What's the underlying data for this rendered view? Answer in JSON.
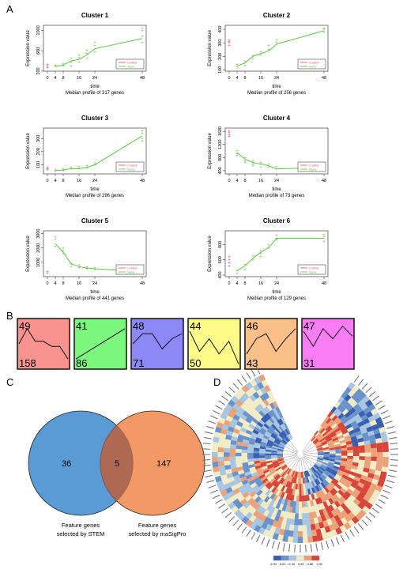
{
  "panel_labels": {
    "A": "A",
    "B": "B",
    "C": "C",
    "D": "D"
  },
  "legend": {
    "control": "Control",
    "injury": "Injury"
  },
  "colors": {
    "control": "#e8407a",
    "injury": "#5cc63a",
    "line": "#62c545"
  },
  "chart_data": [
    {
      "type": "line",
      "title": "Cluster 1",
      "xlabel": "time",
      "ylabel": "Expression value",
      "subtitle": "Median profile of 317 genes",
      "x": [
        0,
        4,
        8,
        12,
        16,
        20,
        24,
        48
      ],
      "xticks": [
        0,
        4,
        8,
        16,
        24,
        48
      ],
      "ylim": [
        200,
        1100
      ],
      "yticks": [
        200,
        600,
        1000
      ],
      "median": [
        290,
        290,
        320,
        400,
        430,
        520,
        640,
        840
      ],
      "injury_points": [
        [
          4,
          290
        ],
        [
          4,
          320
        ],
        [
          8,
          300
        ],
        [
          8,
          350
        ],
        [
          12,
          380
        ],
        [
          12,
          450
        ],
        [
          12,
          300
        ],
        [
          16,
          460
        ],
        [
          16,
          380
        ],
        [
          16,
          520
        ],
        [
          20,
          540
        ],
        [
          20,
          600
        ],
        [
          20,
          450
        ],
        [
          24,
          700
        ],
        [
          24,
          580
        ],
        [
          24,
          760
        ],
        [
          48,
          1000
        ],
        [
          48,
          760
        ],
        [
          48,
          880
        ],
        [
          48,
          1040
        ]
      ],
      "control_points": [
        [
          0,
          300
        ],
        [
          0,
          330
        ],
        [
          0,
          270
        ]
      ]
    },
    {
      "type": "line",
      "title": "Cluster 2",
      "xlabel": "time",
      "ylabel": "Expression value",
      "subtitle": "Median profile of 256 genes",
      "x": [
        0,
        4,
        8,
        12,
        16,
        20,
        24,
        48
      ],
      "xticks": [
        0,
        4,
        8,
        16,
        24,
        48
      ],
      "ylim": [
        90,
        430
      ],
      "yticks": [
        100,
        200,
        300,
        400
      ],
      "median": [
        130,
        130,
        150,
        200,
        220,
        240,
        290,
        390
      ],
      "injury_points": [
        [
          4,
          120
        ],
        [
          4,
          140
        ],
        [
          8,
          130
        ],
        [
          8,
          160
        ],
        [
          12,
          200
        ],
        [
          12,
          180
        ],
        [
          16,
          230
        ],
        [
          16,
          210
        ],
        [
          20,
          250
        ],
        [
          20,
          280
        ],
        [
          24,
          300
        ],
        [
          24,
          320
        ],
        [
          48,
          380
        ],
        [
          48,
          400
        ],
        [
          48,
          410
        ]
      ],
      "control_points": [
        [
          0,
          300
        ],
        [
          0,
          320
        ],
        [
          0,
          280
        ],
        [
          0,
          310
        ]
      ]
    },
    {
      "type": "line",
      "title": "Cluster 3",
      "xlabel": "time",
      "ylabel": "Expression value",
      "subtitle": "Median profile of 296 genes",
      "x": [
        0,
        4,
        8,
        12,
        16,
        20,
        24,
        48
      ],
      "xticks": [
        0,
        4,
        8,
        16,
        24,
        48
      ],
      "ylim": [
        30,
        380
      ],
      "yticks": [
        100,
        200,
        300
      ],
      "median": [
        60,
        55,
        60,
        70,
        70,
        80,
        100,
        320
      ],
      "injury_points": [
        [
          4,
          50
        ],
        [
          4,
          60
        ],
        [
          8,
          55
        ],
        [
          8,
          65
        ],
        [
          12,
          70
        ],
        [
          12,
          80
        ],
        [
          16,
          70
        ],
        [
          16,
          85
        ],
        [
          20,
          90
        ],
        [
          20,
          75
        ],
        [
          24,
          110
        ],
        [
          24,
          95
        ],
        [
          48,
          300
        ],
        [
          48,
          340
        ],
        [
          48,
          280
        ],
        [
          48,
          360
        ]
      ],
      "control_points": [
        [
          0,
          70
        ],
        [
          0,
          80
        ],
        [
          0,
          60
        ]
      ]
    },
    {
      "type": "line",
      "title": "Cluster 4",
      "xlabel": "time",
      "ylabel": "Expression value",
      "subtitle": "Median profile of 73 genes",
      "x": [
        0,
        4,
        8,
        12,
        16,
        20,
        24,
        48
      ],
      "xticks": [
        0,
        4,
        8,
        16,
        24,
        48
      ],
      "ylim": [
        300,
        1700
      ],
      "yticks": [
        400,
        800,
        1200,
        1600
      ],
      "median": [
        900,
        950,
        750,
        650,
        600,
        550,
        450,
        500
      ],
      "injury_points": [
        [
          4,
          1000
        ],
        [
          4,
          900
        ],
        [
          4,
          850
        ],
        [
          8,
          800
        ],
        [
          8,
          700
        ],
        [
          8,
          650
        ],
        [
          12,
          700
        ],
        [
          12,
          600
        ],
        [
          12,
          550
        ],
        [
          16,
          650
        ],
        [
          16,
          500
        ],
        [
          16,
          600
        ],
        [
          20,
          600
        ],
        [
          20,
          500
        ],
        [
          24,
          450
        ],
        [
          24,
          520
        ],
        [
          48,
          550
        ],
        [
          48,
          450
        ]
      ],
      "control_points": [
        [
          0,
          1600
        ],
        [
          0,
          1500
        ],
        [
          0,
          1450
        ],
        [
          0,
          1550
        ]
      ]
    },
    {
      "type": "line",
      "title": "Cluster 5",
      "xlabel": "time",
      "ylabel": "Expression value",
      "subtitle": "Median profile of 441 genes",
      "x": [
        0,
        4,
        8,
        12,
        16,
        20,
        24,
        48
      ],
      "xticks": [
        0,
        4,
        8,
        16,
        24,
        48
      ],
      "ylim": [
        0,
        3200
      ],
      "yticks": [
        1000,
        2000,
        3000
      ],
      "median": [
        2200,
        2300,
        1700,
        900,
        700,
        600,
        550,
        350
      ],
      "injury_points": [
        [
          4,
          2600
        ],
        [
          4,
          2800
        ],
        [
          4,
          2100
        ],
        [
          8,
          1800
        ],
        [
          8,
          1600
        ],
        [
          8,
          2000
        ],
        [
          12,
          900
        ],
        [
          12,
          700
        ],
        [
          16,
          800
        ],
        [
          16,
          600
        ],
        [
          20,
          550
        ],
        [
          20,
          650
        ],
        [
          24,
          500
        ],
        [
          24,
          600
        ],
        [
          48,
          400
        ],
        [
          48,
          300
        ]
      ],
      "control_points": [
        [
          0,
          350
        ],
        [
          0,
          250
        ]
      ]
    },
    {
      "type": "line",
      "title": "Cluster 6",
      "xlabel": "time",
      "ylabel": "Expression value",
      "subtitle": "Median profile of 129 genes",
      "x": [
        0,
        4,
        8,
        12,
        16,
        20,
        24,
        48
      ],
      "xticks": [
        0,
        4,
        8,
        16,
        24,
        48
      ],
      "ylim": [
        380,
        980
      ],
      "yticks": [
        400,
        600,
        800
      ],
      "median": [
        420,
        460,
        520,
        620,
        700,
        760,
        880,
        880
      ],
      "injury_points": [
        [
          4,
          420
        ],
        [
          4,
          460
        ],
        [
          8,
          480
        ],
        [
          8,
          540
        ],
        [
          12,
          600
        ],
        [
          12,
          650
        ],
        [
          16,
          680
        ],
        [
          16,
          720
        ],
        [
          16,
          640
        ],
        [
          20,
          760
        ],
        [
          20,
          800
        ],
        [
          24,
          880
        ],
        [
          24,
          920
        ],
        [
          24,
          860
        ],
        [
          48,
          840
        ],
        [
          48,
          900
        ],
        [
          48,
          930
        ]
      ],
      "control_points": [
        [
          0,
          600
        ],
        [
          0,
          560
        ],
        [
          0,
          520
        ],
        [
          0,
          640
        ]
      ]
    }
  ],
  "profiles": [
    {
      "id": "49",
      "count": "158",
      "color": "#f9938f",
      "shape": [
        0.5,
        0.8,
        0.55,
        0.55,
        0.45,
        0.45,
        0.2
      ]
    },
    {
      "id": "41",
      "count": "86",
      "color": "#7df87e",
      "shape": [
        0.2,
        0.35,
        0.5,
        0.65,
        0.8
      ]
    },
    {
      "id": "48",
      "count": "71",
      "color": "#8c88f8",
      "shape": [
        0.5,
        0.7,
        0.7,
        0.4,
        0.6,
        0.7
      ]
    },
    {
      "id": "44",
      "count": "50",
      "color": "#fdfc8a",
      "shape": [
        0.75,
        0.35,
        0.6,
        0.3,
        0.55,
        0.1
      ]
    },
    {
      "id": "46",
      "count": "43",
      "color": "#fbbf88",
      "shape": [
        0.3,
        0.6,
        0.7,
        0.35,
        0.6,
        0.8
      ]
    },
    {
      "id": "47",
      "count": "31",
      "color": "#f97ef4",
      "shape": [
        0.75,
        0.45,
        0.8,
        0.6,
        0.85,
        0.65
      ]
    }
  ],
  "venn": {
    "left_count": "36",
    "overlap_count": "5",
    "right_count": "147",
    "left_label_1": "Feature genes",
    "left_label_2": "selected by STEM",
    "right_label_1": "Feature genes",
    "right_label_2": "selected by maSigPro"
  },
  "heatmap": {
    "scale_ticks": [
      "0.00",
      "0.20",
      "0.40",
      "0.60",
      "0.80",
      "1.00"
    ]
  }
}
